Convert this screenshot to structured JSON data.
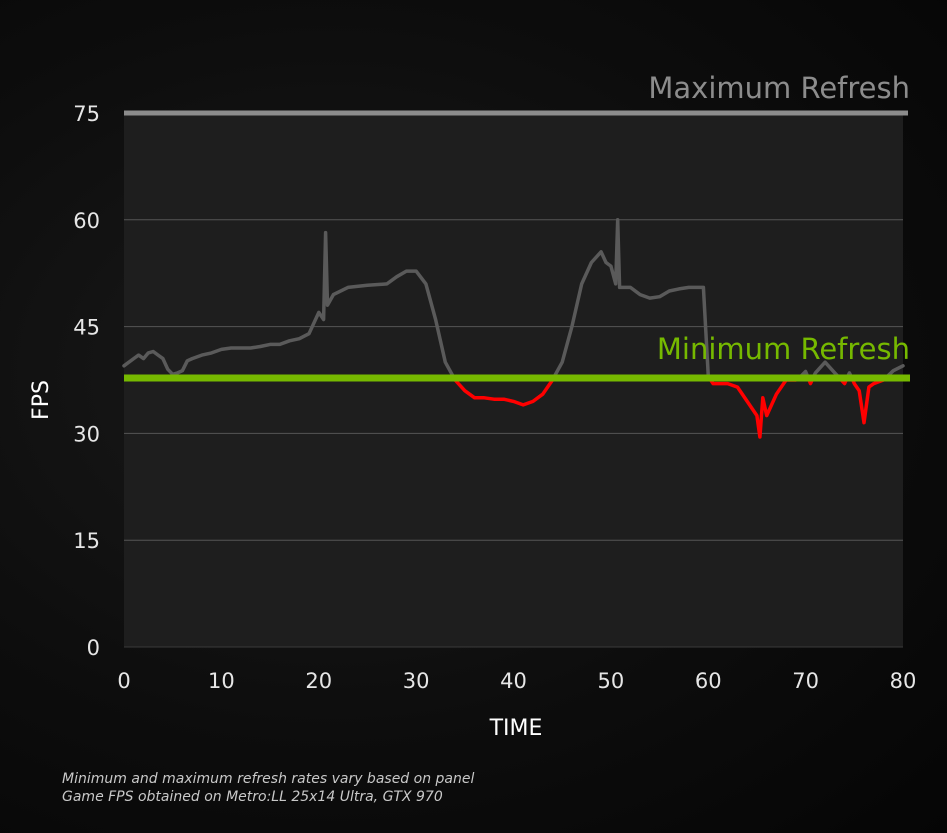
{
  "chart_data": {
    "type": "line",
    "title": "",
    "xlabel": "TIME",
    "ylabel": "FPS",
    "xlim": [
      0,
      80
    ],
    "ylim": [
      0,
      75
    ],
    "x_ticks": [
      0,
      10,
      20,
      30,
      40,
      50,
      60,
      70,
      80
    ],
    "y_ticks": [
      0,
      15,
      30,
      45,
      60,
      75
    ],
    "grid": true,
    "colors": {
      "above_min": "#5a5a5a",
      "below_min": "#ff0000",
      "minimum_refresh": "#76b900",
      "maximum_refresh": "#8c8c8c",
      "plot_background": "#1e1e1e",
      "grid": "#555555"
    },
    "reference_lines": [
      {
        "label": "Maximum Refresh",
        "value": 75
      },
      {
        "label": "Minimum Refresh",
        "value": 38
      }
    ],
    "series": [
      {
        "points": [
          [
            0,
            39.5
          ],
          [
            1,
            40.5
          ],
          [
            1.5,
            41
          ],
          [
            2,
            40.5
          ],
          [
            2.5,
            41.3
          ],
          [
            3,
            41.5
          ],
          [
            3.5,
            41
          ],
          [
            4,
            40.5
          ],
          [
            4.5,
            39
          ],
          [
            5,
            38.3
          ],
          [
            5.5,
            38.5
          ],
          [
            6,
            38.8
          ],
          [
            6.5,
            40.2
          ],
          [
            7,
            40.5
          ],
          [
            8,
            41
          ],
          [
            9,
            41.3
          ],
          [
            10,
            41.8
          ],
          [
            11,
            42
          ],
          [
            12,
            42
          ],
          [
            13,
            42
          ],
          [
            14,
            42.2
          ],
          [
            15,
            42.5
          ],
          [
            16,
            42.5
          ],
          [
            17,
            43
          ],
          [
            18,
            43.3
          ],
          [
            19,
            44
          ],
          [
            20,
            47
          ],
          [
            20.5,
            46
          ],
          [
            20.7,
            58.2
          ],
          [
            20.9,
            48
          ],
          [
            21.5,
            49.5
          ],
          [
            23,
            50.5
          ],
          [
            25,
            50.8
          ],
          [
            27,
            51
          ],
          [
            28,
            52
          ],
          [
            29,
            52.8
          ],
          [
            30,
            52.8
          ],
          [
            31,
            51
          ],
          [
            32,
            46
          ],
          [
            33,
            40
          ],
          [
            34,
            37.5
          ],
          [
            35,
            36
          ],
          [
            36,
            35
          ],
          [
            37,
            35
          ],
          [
            38,
            34.8
          ],
          [
            39,
            34.8
          ],
          [
            40,
            34.5
          ],
          [
            41,
            34
          ],
          [
            42,
            34.5
          ],
          [
            43,
            35.5
          ],
          [
            44,
            37.5
          ],
          [
            45,
            40
          ],
          [
            46,
            45
          ],
          [
            47,
            51
          ],
          [
            48,
            54
          ],
          [
            49,
            55.5
          ],
          [
            49.5,
            54
          ],
          [
            50,
            53.5
          ],
          [
            50.5,
            51
          ],
          [
            50.7,
            60
          ],
          [
            50.9,
            50.5
          ],
          [
            52,
            50.5
          ],
          [
            53,
            49.5
          ],
          [
            54,
            49
          ],
          [
            55,
            49.2
          ],
          [
            56,
            50
          ],
          [
            57,
            50.3
          ],
          [
            58,
            50.5
          ],
          [
            59,
            50.5
          ],
          [
            59.5,
            50.5
          ],
          [
            60,
            38
          ],
          [
            60.5,
            37
          ],
          [
            61,
            37
          ],
          [
            62,
            37
          ],
          [
            63,
            36.5
          ],
          [
            64,
            34.5
          ],
          [
            65,
            32.5
          ],
          [
            65.3,
            29.5
          ],
          [
            65.6,
            35
          ],
          [
            66,
            32.5
          ],
          [
            67,
            35.5
          ],
          [
            68,
            37.5
          ],
          [
            69,
            37.5
          ],
          [
            69.5,
            38
          ],
          [
            70,
            38.7
          ],
          [
            70.5,
            37
          ],
          [
            71,
            38.5
          ],
          [
            72,
            40
          ],
          [
            73,
            38.5
          ],
          [
            74,
            37
          ],
          [
            74.5,
            38.5
          ],
          [
            75,
            37
          ],
          [
            75.5,
            36
          ],
          [
            76,
            31.5
          ],
          [
            76.5,
            36.5
          ],
          [
            77,
            37
          ],
          [
            78,
            37.5
          ],
          [
            79,
            38.8
          ],
          [
            80,
            39.5
          ]
        ]
      }
    ]
  },
  "footnotes": [
    "Minimum and maximum refresh rates vary based on panel",
    "Game FPS obtained on Metro:LL 25x14 Ultra, GTX 970"
  ]
}
